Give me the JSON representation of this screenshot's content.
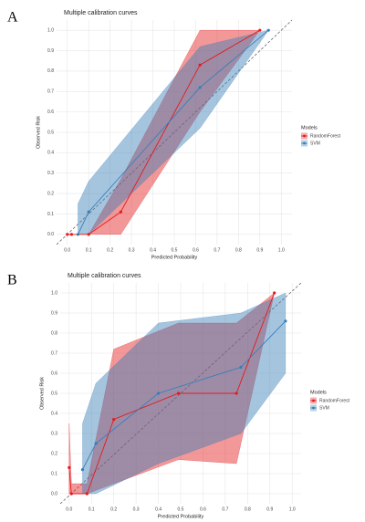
{
  "chart_data": [
    {
      "type": "line",
      "panel": "A",
      "title": "Multiple calibration curves",
      "x_label": "Predicted Probability",
      "y_label": "Observed Risk",
      "legend_title": "Models",
      "xlim": [
        -0.05,
        1.05
      ],
      "ylim": [
        -0.05,
        1.05
      ],
      "xticks": [
        {
          "value": 0,
          "label": "0.0"
        },
        0.1,
        0.2,
        0.3,
        0.4,
        0.5,
        0.6,
        0.7,
        0.8,
        0.9,
        {
          "value": 1,
          "label": "1.0"
        }
      ],
      "yticks": [
        {
          "value": 0,
          "label": "0.0"
        },
        0.1,
        0.2,
        0.3,
        0.4,
        0.5,
        0.6,
        0.7,
        0.8,
        0.9,
        {
          "value": 1,
          "label": "1.0"
        }
      ],
      "grid": true,
      "series": [
        {
          "name": "RandomForest",
          "color": "#e41a1c",
          "x": [
            0.0,
            0.02,
            0.1,
            0.25,
            0.62,
            0.9
          ],
          "values": [
            0.0,
            0.0,
            0.0,
            0.11,
            0.83,
            1.0
          ],
          "lower": [
            0.0,
            0.0,
            0.0,
            0.0,
            0.6,
            1.0
          ],
          "upper": [
            0.0,
            0.0,
            0.0,
            0.27,
            1.0,
            1.0
          ]
        },
        {
          "name": "SVM",
          "color": "#377eb8",
          "x": [
            0.05,
            0.1,
            0.62,
            0.94
          ],
          "values": [
            0.0,
            0.11,
            0.72,
            1.0
          ],
          "lower": [
            0.0,
            0.0,
            0.52,
            1.0
          ],
          "upper": [
            0.15,
            0.26,
            0.92,
            1.0
          ]
        }
      ]
    },
    {
      "type": "line",
      "panel": "B",
      "title": "Multiple calibration curves",
      "x_label": "Predicted Probability",
      "y_label": "Observed Risk",
      "legend_title": "Models",
      "xlim": [
        -0.04,
        1.04
      ],
      "ylim": [
        -0.05,
        1.05
      ],
      "xticks": [
        {
          "value": 0,
          "label": "0.0"
        },
        0.1,
        0.2,
        0.3,
        0.4,
        0.5,
        0.6,
        0.7,
        0.8,
        0.9,
        {
          "value": 1,
          "label": "1.0"
        }
      ],
      "yticks": [
        {
          "value": 0,
          "label": "0.0"
        },
        0.1,
        0.2,
        0.3,
        0.4,
        0.5,
        0.6,
        0.7,
        0.8,
        0.9,
        {
          "value": 1,
          "label": "1.0"
        }
      ],
      "grid": true,
      "series": [
        {
          "name": "RandomForest",
          "color": "#e41a1c",
          "x": [
            0.0,
            0.01,
            0.08,
            0.2,
            0.49,
            0.75,
            0.92
          ],
          "values": [
            0.13,
            0.0,
            0.0,
            0.37,
            0.5,
            0.5,
            1.0
          ],
          "lower": [
            0.0,
            0.0,
            0.0,
            0.05,
            0.17,
            0.15,
            1.0
          ],
          "upper": [
            0.35,
            0.05,
            0.05,
            0.72,
            0.85,
            0.85,
            1.0
          ]
        },
        {
          "name": "SVM",
          "color": "#377eb8",
          "x": [
            0.06,
            0.12,
            0.4,
            0.77,
            0.97
          ],
          "values": [
            0.12,
            0.25,
            0.5,
            0.63,
            0.86
          ],
          "lower": [
            0.0,
            0.0,
            0.15,
            0.3,
            0.6
          ],
          "upper": [
            0.35,
            0.55,
            0.85,
            0.9,
            1.0
          ]
        }
      ]
    }
  ]
}
